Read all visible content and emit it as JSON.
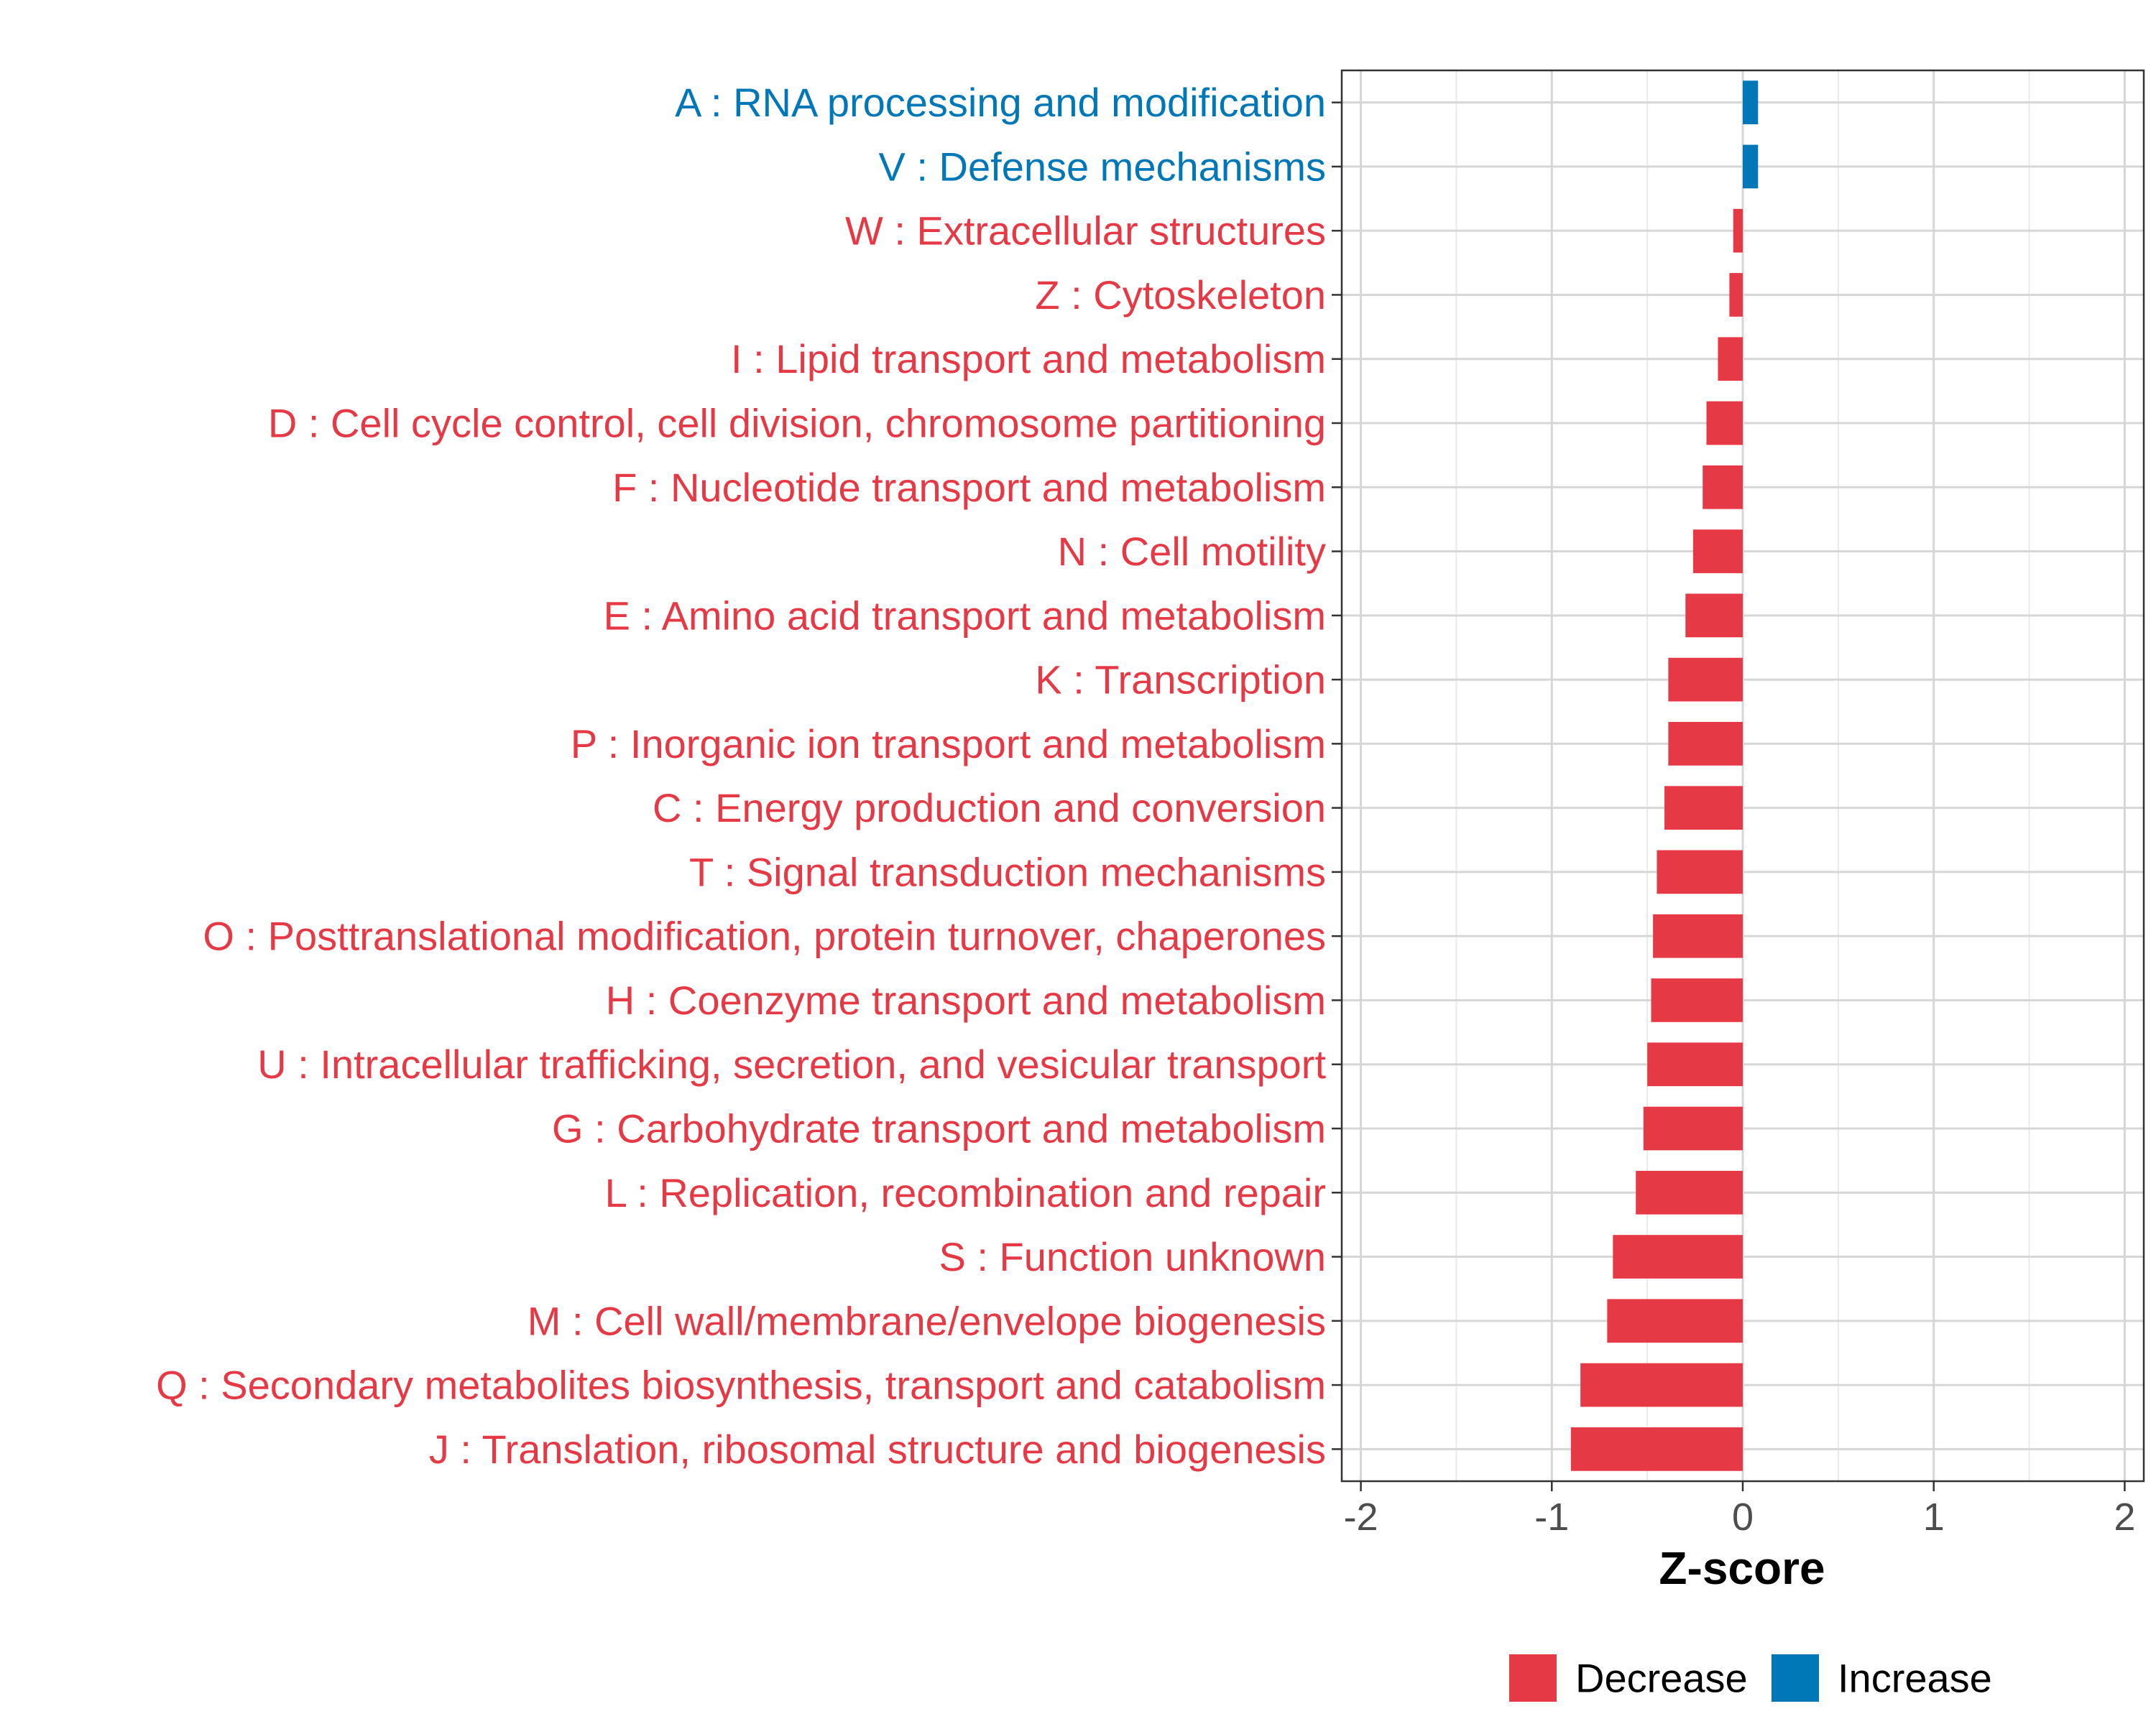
{
  "chart_data": {
    "type": "bar",
    "orientation": "horizontal",
    "title": "",
    "xlabel": "Z-score",
    "ylabel": "",
    "xlim": [
      -2.1,
      2.1
    ],
    "x_ticks": [
      -2,
      -1,
      0,
      1,
      2
    ],
    "x_tick_labels": [
      "-2",
      "-1",
      "0",
      "1",
      "2"
    ],
    "grid": true,
    "legend_position": "bottom",
    "colors": {
      "Decrease": "#E63946",
      "Increase": "#0077B6"
    },
    "legend": [
      {
        "label": "Decrease",
        "color": "#E63946"
      },
      {
        "label": "Increase",
        "color": "#0077B6"
      }
    ],
    "categories": [
      "A : RNA processing and modification",
      "V : Defense mechanisms",
      "W : Extracellular structures",
      "Z : Cytoskeleton",
      "I : Lipid transport and metabolism",
      "D : Cell cycle control, cell division, chromosome partitioning",
      "F : Nucleotide transport and metabolism",
      "N : Cell motility",
      "E : Amino acid transport and metabolism",
      "K : Transcription",
      "P : Inorganic ion transport and metabolism",
      "C : Energy production and conversion",
      "T : Signal transduction mechanisms",
      "O : Posttranslational modification, protein turnover, chaperones",
      "H : Coenzyme transport and metabolism",
      "U : Intracellular trafficking, secretion, and vesicular transport",
      "G : Carbohydrate transport and metabolism",
      "L : Replication, recombination and repair",
      "S : Function unknown",
      "M : Cell wall/membrane/envelope biogenesis",
      "Q : Secondary metabolites biosynthesis, transport and catabolism",
      "J : Translation, ribosomal structure and biogenesis"
    ],
    "values": [
      0.08,
      0.08,
      -0.05,
      -0.07,
      -0.13,
      -0.19,
      -0.21,
      -0.26,
      -0.3,
      -0.39,
      -0.39,
      -0.41,
      -0.45,
      -0.47,
      -0.48,
      -0.5,
      -0.52,
      -0.56,
      -0.68,
      -0.71,
      -0.85,
      -0.9
    ],
    "groups": [
      "Increase",
      "Increase",
      "Decrease",
      "Decrease",
      "Decrease",
      "Decrease",
      "Decrease",
      "Decrease",
      "Decrease",
      "Decrease",
      "Decrease",
      "Decrease",
      "Decrease",
      "Decrease",
      "Decrease",
      "Decrease",
      "Decrease",
      "Decrease",
      "Decrease",
      "Decrease",
      "Decrease",
      "Decrease"
    ]
  }
}
